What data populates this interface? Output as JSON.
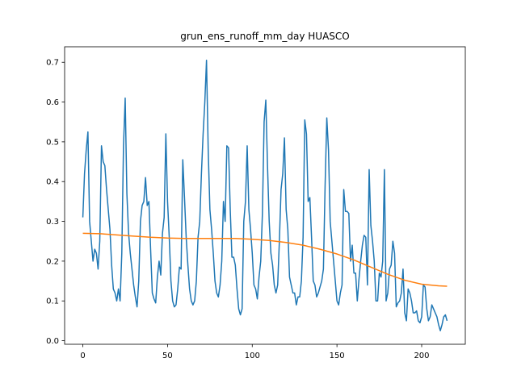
{
  "chart_data": {
    "type": "line",
    "title": "grun_ens_runoff_mm_day HUASCO",
    "xlim": [
      -10.75,
      225.75
    ],
    "xticks": [
      0,
      50,
      100,
      150,
      200
    ],
    "ylim": [
      -0.009,
      0.739
    ],
    "yticks": [
      {
        "value": 0,
        "label": "0.0"
      },
      0.1,
      0.2,
      0.3,
      0.4,
      0.5,
      0.6,
      0.7
    ],
    "series": [
      {
        "color": "#1f77b4",
        "x": [
          0,
          1,
          2,
          3,
          4,
          5,
          6,
          7,
          8,
          9,
          10,
          11,
          12,
          13,
          14,
          15,
          16,
          17,
          18,
          19,
          20,
          21,
          22,
          23,
          24,
          25,
          26,
          27,
          28,
          29,
          30,
          31,
          32,
          33,
          34,
          35,
          36,
          37,
          38,
          39,
          40,
          41,
          42,
          43,
          44,
          45,
          46,
          47,
          48,
          49,
          50,
          51,
          52,
          53,
          54,
          55,
          56,
          57,
          58,
          59,
          60,
          61,
          62,
          63,
          64,
          65,
          66,
          67,
          68,
          69,
          70,
          71,
          72,
          73,
          74,
          75,
          76,
          77,
          78,
          79,
          80,
          81,
          82,
          83,
          84,
          85,
          86,
          87,
          88,
          89,
          90,
          91,
          92,
          93,
          94,
          95,
          96,
          97,
          98,
          99,
          100,
          101,
          102,
          103,
          104,
          105,
          106,
          107,
          108,
          109,
          110,
          111,
          112,
          113,
          114,
          115,
          116,
          117,
          118,
          119,
          120,
          121,
          122,
          123,
          124,
          125,
          126,
          127,
          128,
          129,
          130,
          131,
          132,
          133,
          134,
          135,
          136,
          137,
          138,
          139,
          140,
          141,
          142,
          143,
          144,
          145,
          146,
          147,
          148,
          149,
          150,
          151,
          152,
          153,
          154,
          155,
          156,
          157,
          158,
          159,
          160,
          161,
          162,
          163,
          164,
          165,
          166,
          167,
          168,
          169,
          170,
          171,
          172,
          173,
          174,
          175,
          176,
          177,
          178,
          179,
          180,
          181,
          182,
          183,
          184,
          185,
          186,
          187,
          188,
          189,
          190,
          191,
          192,
          193,
          194,
          195,
          196,
          197,
          198,
          199,
          200,
          201,
          202,
          203,
          204,
          205,
          206,
          207,
          208,
          209,
          210,
          211,
          212,
          213,
          214,
          215
        ],
        "values": [
          0.31,
          0.42,
          0.48,
          0.525,
          0.3,
          0.25,
          0.2,
          0.23,
          0.22,
          0.18,
          0.25,
          0.49,
          0.45,
          0.44,
          0.38,
          0.33,
          0.28,
          0.19,
          0.13,
          0.12,
          0.1,
          0.13,
          0.1,
          0.22,
          0.49,
          0.61,
          0.37,
          0.27,
          0.22,
          0.18,
          0.14,
          0.11,
          0.085,
          0.15,
          0.3,
          0.34,
          0.35,
          0.41,
          0.34,
          0.35,
          0.23,
          0.12,
          0.105,
          0.095,
          0.16,
          0.2,
          0.165,
          0.27,
          0.31,
          0.52,
          0.35,
          0.26,
          0.15,
          0.1,
          0.085,
          0.09,
          0.13,
          0.185,
          0.18,
          0.455,
          0.36,
          0.26,
          0.19,
          0.13,
          0.1,
          0.09,
          0.1,
          0.15,
          0.26,
          0.3,
          0.42,
          0.52,
          0.6,
          0.705,
          0.48,
          0.33,
          0.28,
          0.22,
          0.15,
          0.12,
          0.11,
          0.14,
          0.2,
          0.35,
          0.3,
          0.49,
          0.485,
          0.33,
          0.21,
          0.21,
          0.19,
          0.13,
          0.08,
          0.065,
          0.08,
          0.3,
          0.35,
          0.49,
          0.33,
          0.28,
          0.22,
          0.14,
          0.13,
          0.105,
          0.16,
          0.2,
          0.32,
          0.55,
          0.605,
          0.44,
          0.3,
          0.22,
          0.19,
          0.14,
          0.12,
          0.14,
          0.25,
          0.38,
          0.42,
          0.51,
          0.33,
          0.28,
          0.16,
          0.14,
          0.12,
          0.12,
          0.09,
          0.11,
          0.11,
          0.15,
          0.26,
          0.555,
          0.52,
          0.35,
          0.36,
          0.26,
          0.15,
          0.14,
          0.11,
          0.12,
          0.135,
          0.15,
          0.18,
          0.39,
          0.56,
          0.48,
          0.3,
          0.25,
          0.2,
          0.15,
          0.1,
          0.09,
          0.12,
          0.14,
          0.38,
          0.325,
          0.325,
          0.32,
          0.2,
          0.24,
          0.17,
          0.17,
          0.1,
          0.155,
          0.2,
          0.24,
          0.265,
          0.26,
          0.14,
          0.43,
          0.29,
          0.25,
          0.2,
          0.1,
          0.1,
          0.17,
          0.16,
          0.2,
          0.43,
          0.1,
          0.12,
          0.18,
          0.19,
          0.25,
          0.22,
          0.085,
          0.095,
          0.1,
          0.12,
          0.18,
          0.07,
          0.05,
          0.13,
          0.12,
          0.1,
          0.07,
          0.07,
          0.075,
          0.05,
          0.045,
          0.06,
          0.14,
          0.135,
          0.08,
          0.05,
          0.06,
          0.09,
          0.08,
          0.07,
          0.06,
          0.04,
          0.025,
          0.04,
          0.06,
          0.065,
          0.05
        ]
      },
      {
        "color": "#ff7f0e",
        "x": [
          0,
          10,
          20,
          30,
          40,
          50,
          60,
          70,
          80,
          90,
          100,
          110,
          120,
          130,
          140,
          150,
          160,
          170,
          180,
          190,
          200,
          210,
          215
        ],
        "values": [
          0.27,
          0.269,
          0.266,
          0.263,
          0.26,
          0.258,
          0.257,
          0.257,
          0.257,
          0.257,
          0.255,
          0.252,
          0.247,
          0.24,
          0.23,
          0.218,
          0.203,
          0.185,
          0.167,
          0.152,
          0.142,
          0.138,
          0.137
        ]
      }
    ]
  }
}
